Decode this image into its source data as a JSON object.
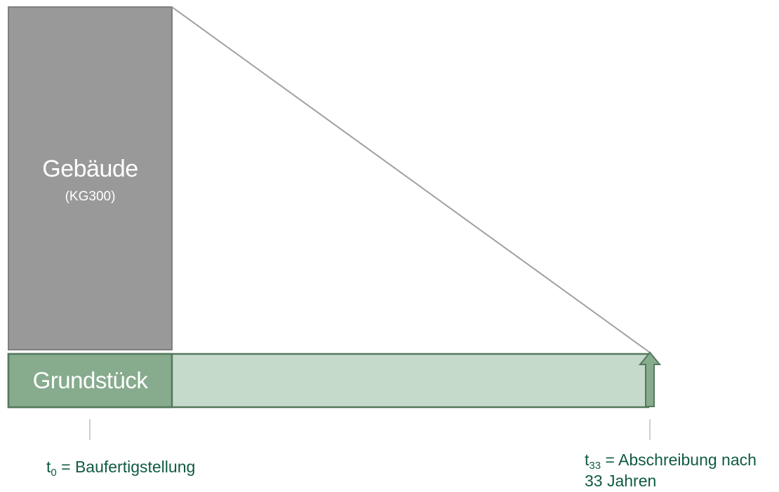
{
  "building": {
    "title": "Gebäude",
    "subtitle": "(KG300)"
  },
  "land": {
    "label": "Grundstück"
  },
  "t0": {
    "symbol": "t",
    "index": "0",
    "text": " = Baufertigstellung"
  },
  "t33": {
    "symbol": "t",
    "index": "33",
    "text_line1": " = Abschreibung nach",
    "text_line2": "33 Jahren"
  },
  "colors": {
    "building_fill": "#999999",
    "building_border": "#7f7f7f",
    "land_fill": "#86ab8d",
    "land_border": "#55785c",
    "bar_fill": "#c6dacb",
    "arrow_fill": "#86ab8d",
    "text_green": "#0f5a43"
  }
}
